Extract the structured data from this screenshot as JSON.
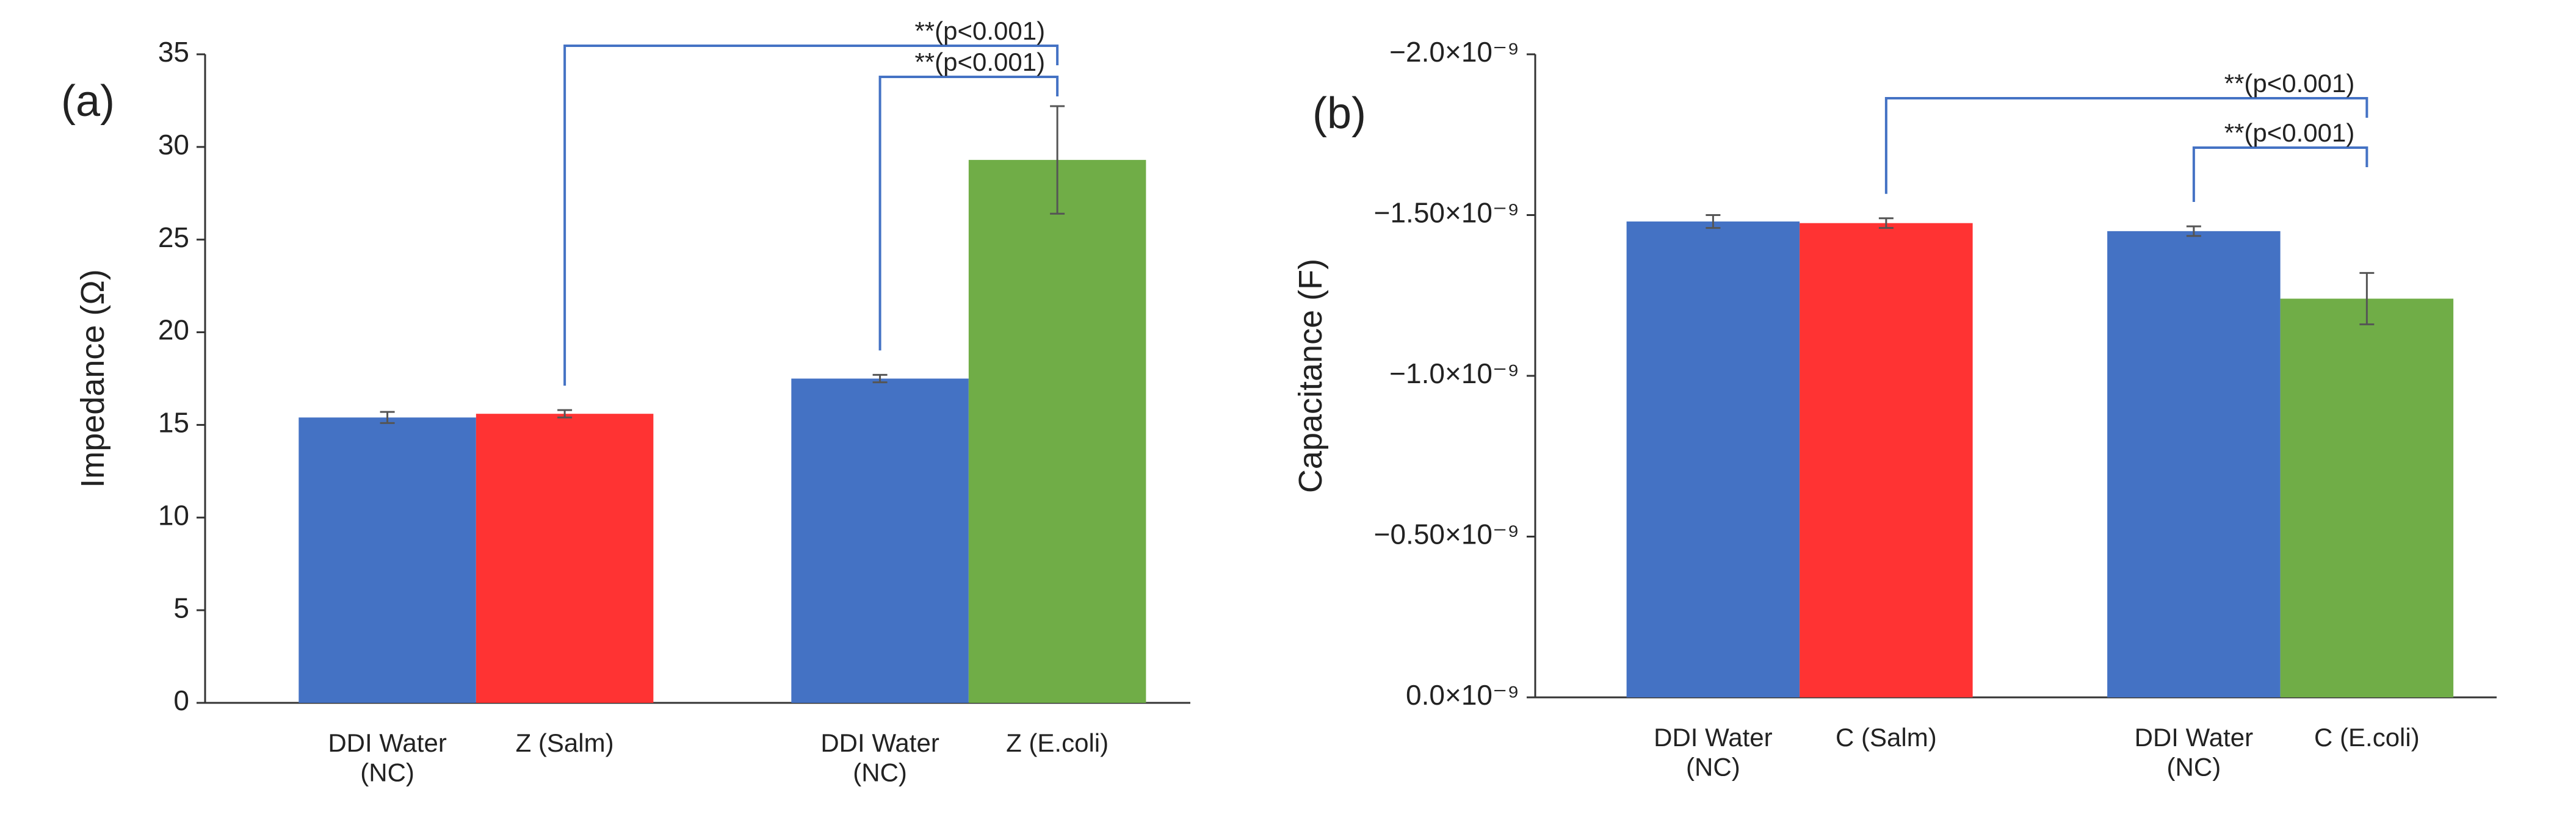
{
  "chart_data": [
    {
      "type": "bar",
      "panel_label": "(a)",
      "y_label": "Impedance (Ω)",
      "categories": [
        "DDI Water\n(NC)",
        "Z (Salm)",
        "DDI Water\n(NC)",
        "Z (E.coli)"
      ],
      "values": [
        15.4,
        15.6,
        17.5,
        29.3
      ],
      "errors": [
        0.3,
        0.2,
        0.2,
        2.9
      ],
      "colors": [
        "#4472c4",
        "#ff3333",
        "#4472c4",
        "#70ad47"
      ],
      "ylim": [
        0,
        35
      ],
      "yticks": [
        0,
        5,
        10,
        15,
        20,
        25,
        30,
        35
      ],
      "significance": [
        {
          "text": "**(p<0.001)",
          "bars": [
            1,
            3
          ]
        },
        {
          "text": "**(p<0.001)",
          "bars": [
            2,
            3
          ]
        }
      ],
      "bracket_color": "#4472c4"
    },
    {
      "type": "bar",
      "panel_label": "(b)",
      "y_label": "Capacitance (F)",
      "categories": [
        "DDI Water\n(NC)",
        "C (Salm)",
        "DDI Water\n(NC)",
        "C (E.coli)"
      ],
      "values": [
        -1.48e-09,
        -1.475e-09,
        -1.45e-09,
        -1.24e-09
      ],
      "errors": [
        2e-11,
        1.5e-11,
        1.5e-11,
        8e-11
      ],
      "colors": [
        "#4472c4",
        "#ff3333",
        "#4472c4",
        "#70ad47"
      ],
      "ylim": [
        0,
        -2e-09
      ],
      "yticks": [
        {
          "value": 0,
          "label": "0.0×10⁻⁹"
        },
        {
          "value": -5e-10,
          "label": "−0.50×10⁻⁹"
        },
        {
          "value": -1e-09,
          "label": "−1.0×10⁻⁹"
        },
        {
          "value": -1.5e-09,
          "label": "−1.50×10⁻⁹"
        },
        {
          "value": -2e-09,
          "label": "−2.0×10⁻⁹"
        }
      ],
      "significance": [
        {
          "text": "**(p<0.001)",
          "bars": [
            1,
            3
          ]
        },
        {
          "text": "**(p<0.001)",
          "bars": [
            2,
            3
          ]
        }
      ],
      "bracket_color": "#4472c4"
    }
  ]
}
